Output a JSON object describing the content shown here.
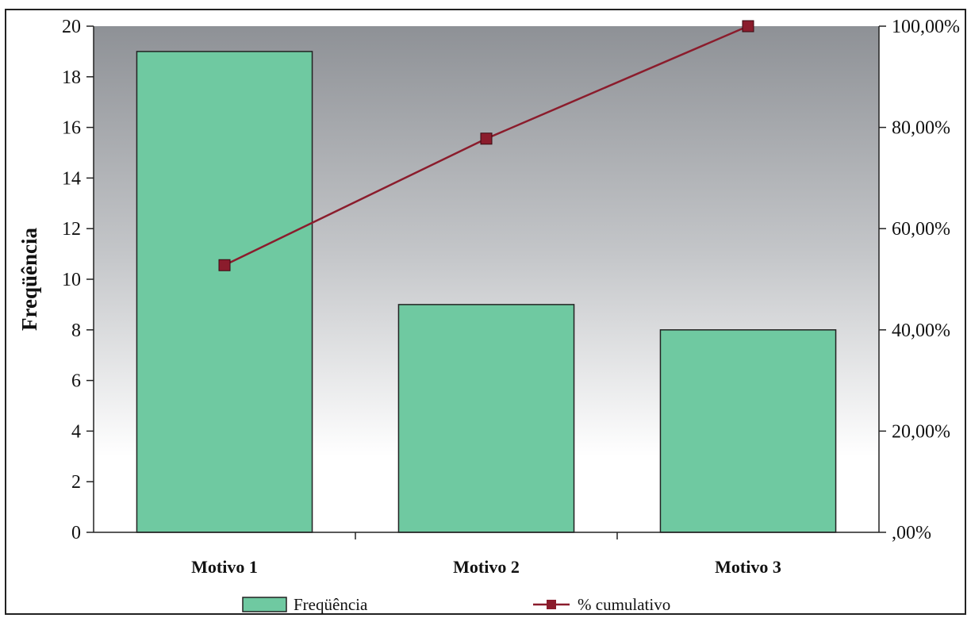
{
  "chart_data": {
    "type": "bar",
    "categories": [
      "Motivo 1",
      "Motivo 2",
      "Motivo 3"
    ],
    "series": [
      {
        "name": "Freqüência",
        "type": "bar",
        "axis": "left",
        "values": [
          19,
          9,
          8
        ]
      },
      {
        "name": "% cumulativo",
        "type": "line",
        "axis": "right",
        "values": [
          52.78,
          77.78,
          100.0
        ]
      }
    ],
    "title": "",
    "xlabel": "",
    "ylabel": "Freqüência",
    "y2label": "",
    "ylim": [
      0,
      20
    ],
    "y2lim": [
      0,
      100
    ],
    "yticks": [
      "0",
      "2",
      "4",
      "6",
      "8",
      "10",
      "12",
      "14",
      "16",
      "18",
      "20"
    ],
    "y2ticks": [
      ",00%",
      "20,00%",
      "40,00%",
      "60,00%",
      "80,00%",
      "100,00%"
    ],
    "grid": false,
    "legend_position": "bottom",
    "colors": {
      "bar_fill": "#6fc9a1",
      "line": "#8b1c2c",
      "marker": "#8b1c2c",
      "plot_gradient_top": "#8e9196",
      "plot_gradient_bottom": "#ffffff"
    }
  }
}
